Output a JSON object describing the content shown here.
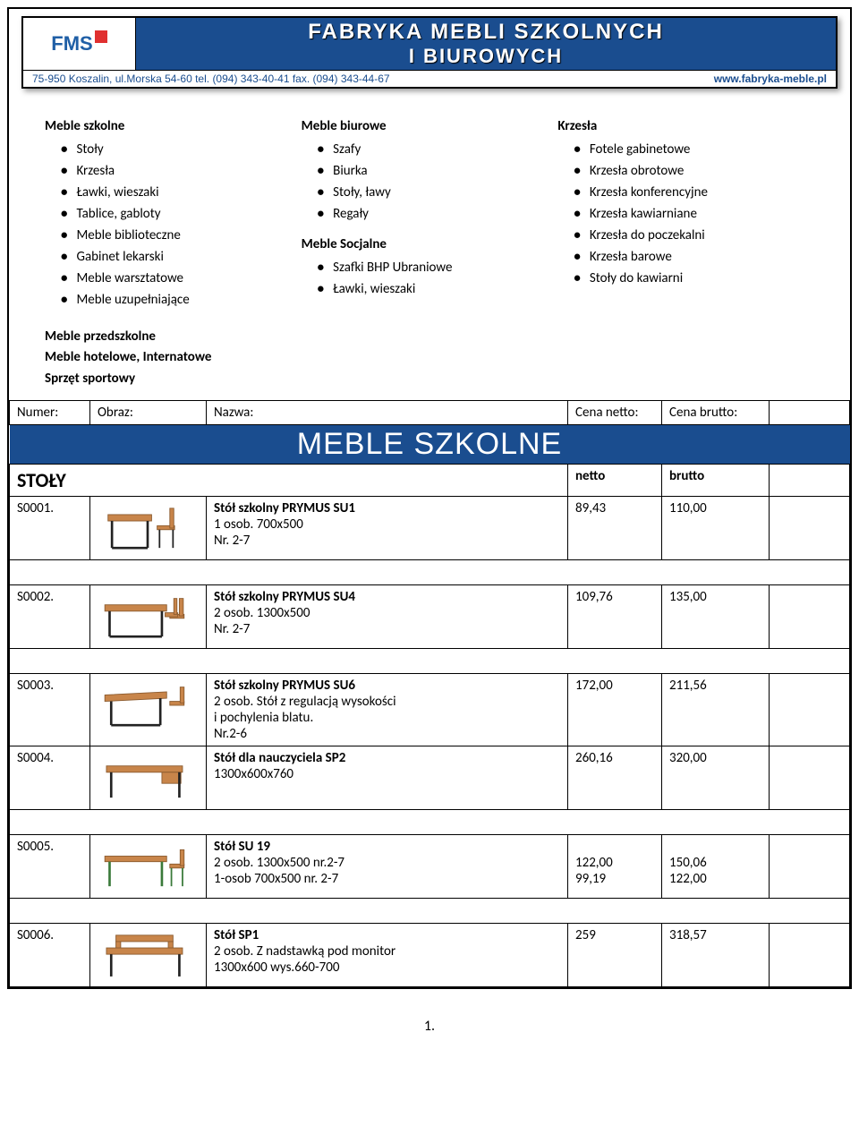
{
  "banner": {
    "logo_text": "FMS",
    "title_line1": "FABRYKA  MEBLI  SZKOLNYCH",
    "title_line2": "I  BIUROWYCH",
    "address": "75-950 Koszalin, ul.Morska 54-60  tel. (094) 343-40-41  fax. (094) 343-44-67",
    "url": "www.fabryka-meble.pl"
  },
  "categories": {
    "col1": {
      "heading": "Meble szkolne",
      "items": [
        "Stoły",
        "Krzesła",
        "Ławki, wieszaki",
        "Tablice, gabloty",
        "Meble biblioteczne",
        "Gabinet lekarski",
        "Meble warsztatowe",
        "Meble uzupełniające"
      ]
    },
    "col2a": {
      "heading": "Meble biurowe",
      "items": [
        "Szafy",
        "Biurka",
        "Stoły, ławy",
        "Regały"
      ]
    },
    "col2b": {
      "heading": "Meble Socjalne",
      "items": [
        "Szafki BHP Ubraniowe",
        "Ławki, wieszaki"
      ]
    },
    "col3": {
      "heading": "Krzesła",
      "items": [
        "Fotele gabinetowe",
        "Krzesła obrotowe",
        "Krzesła konferencyjne",
        "Krzesła kawiarniane",
        "Krzesła do poczekalni",
        "Krzesła barowe",
        "Stoły do kawiarni"
      ]
    },
    "extra": [
      "Meble przedszkolne",
      "Meble hotelowe, Internatowe",
      "Sprzęt sportowy"
    ]
  },
  "table": {
    "header": {
      "numer": "Numer:",
      "obraz": "Obraz:",
      "nazwa": "Nazwa:",
      "cena_netto": "Cena netto:",
      "cena_brutto": "Cena brutto:"
    },
    "section_title": "MEBLE SZKOLNE",
    "category_row": {
      "name": "STOŁY",
      "netto_label": "netto",
      "brutto_label": "brutto"
    },
    "rows": [
      {
        "num": "S0001.",
        "name_bold": "Stół szkolny PRYMUS SU1",
        "name_sub": "1 osob.    700x500\nNr. 2-7",
        "netto": "89,43",
        "brutto": "110,00"
      },
      {
        "num": "S0002.",
        "name_bold": "Stół szkolny PRYMUS SU4",
        "name_sub": "2 osob.    1300x500\nNr. 2-7",
        "netto": "109,76",
        "brutto": "135,00"
      },
      {
        "num": "S0003.",
        "name_bold": "Stół szkolny PRYMUS SU6",
        "name_sub": "2 osob. Stół z regulacją wysokości\n i pochylenia blatu.\nNr.2-6",
        "netto": "172,00",
        "brutto": "211,56"
      },
      {
        "num": "S0004.",
        "name_bold": "Stół dla nauczyciela SP2",
        "name_sub": "1300x600x760",
        "netto": "260,16",
        "brutto": "320,00"
      },
      {
        "num": "S0005.",
        "name_bold": "Stół SU 19",
        "name_sub": "2 osob. 1300x500  nr.2-7\n1-osob  700x500    nr. 2-7",
        "netto": "122,00\n99,19",
        "brutto": "150,06\n122,00"
      },
      {
        "num": "S0006.",
        "name_bold": "Stół SP1",
        "name_sub": "2 osob. Z nadstawką pod monitor\n1300x600 wys.660-700",
        "netto": "259",
        "brutto": "318,57"
      }
    ]
  },
  "page_number": "1.",
  "colors": {
    "brand_blue": "#1a4d8f",
    "logo_red": "#e03030",
    "wood": "#c8854a",
    "wood_dark": "#8a5a2e",
    "frame": "#222222"
  }
}
